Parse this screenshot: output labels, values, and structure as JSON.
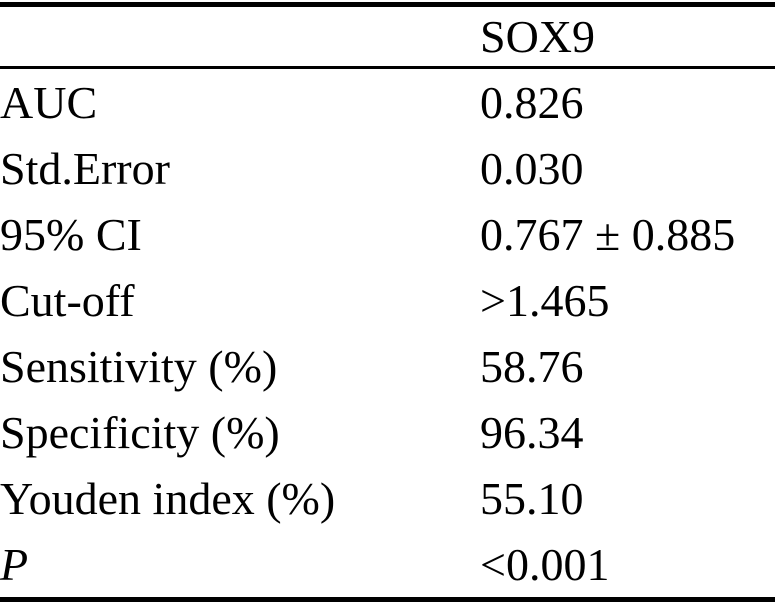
{
  "table": {
    "header": {
      "blank": "",
      "column_label": "SOX9"
    },
    "rows": [
      {
        "label": "AUC",
        "value": "0.826"
      },
      {
        "label": "Std.Error",
        "value": "0.030"
      },
      {
        "label": "95% CI",
        "value": "0.767 ± 0.885"
      },
      {
        "label": "Cut-off",
        "value": ">1.465"
      },
      {
        "label": "Sensitivity (%)",
        "value": "58.76"
      },
      {
        "label": "Specificity (%)",
        "value": "96.34"
      },
      {
        "label": "Youden index (%)",
        "value": "55.10"
      },
      {
        "label": "P",
        "value": "<0.001"
      }
    ]
  },
  "chart_data": {
    "type": "table",
    "title": "",
    "columns": [
      "",
      "SOX9"
    ],
    "rows": [
      [
        "AUC",
        "0.826"
      ],
      [
        "Std.Error",
        "0.030"
      ],
      [
        "95% CI",
        "0.767 ± 0.885"
      ],
      [
        "Cut-off",
        ">1.465"
      ],
      [
        "Sensitivity (%)",
        "58.76"
      ],
      [
        "Specificity (%)",
        "96.34"
      ],
      [
        "Youden index (%)",
        "55.10"
      ],
      [
        "P",
        "<0.001"
      ]
    ]
  },
  "colors": {
    "text": "#000000",
    "background": "#ffffff",
    "rule": "#000000"
  }
}
